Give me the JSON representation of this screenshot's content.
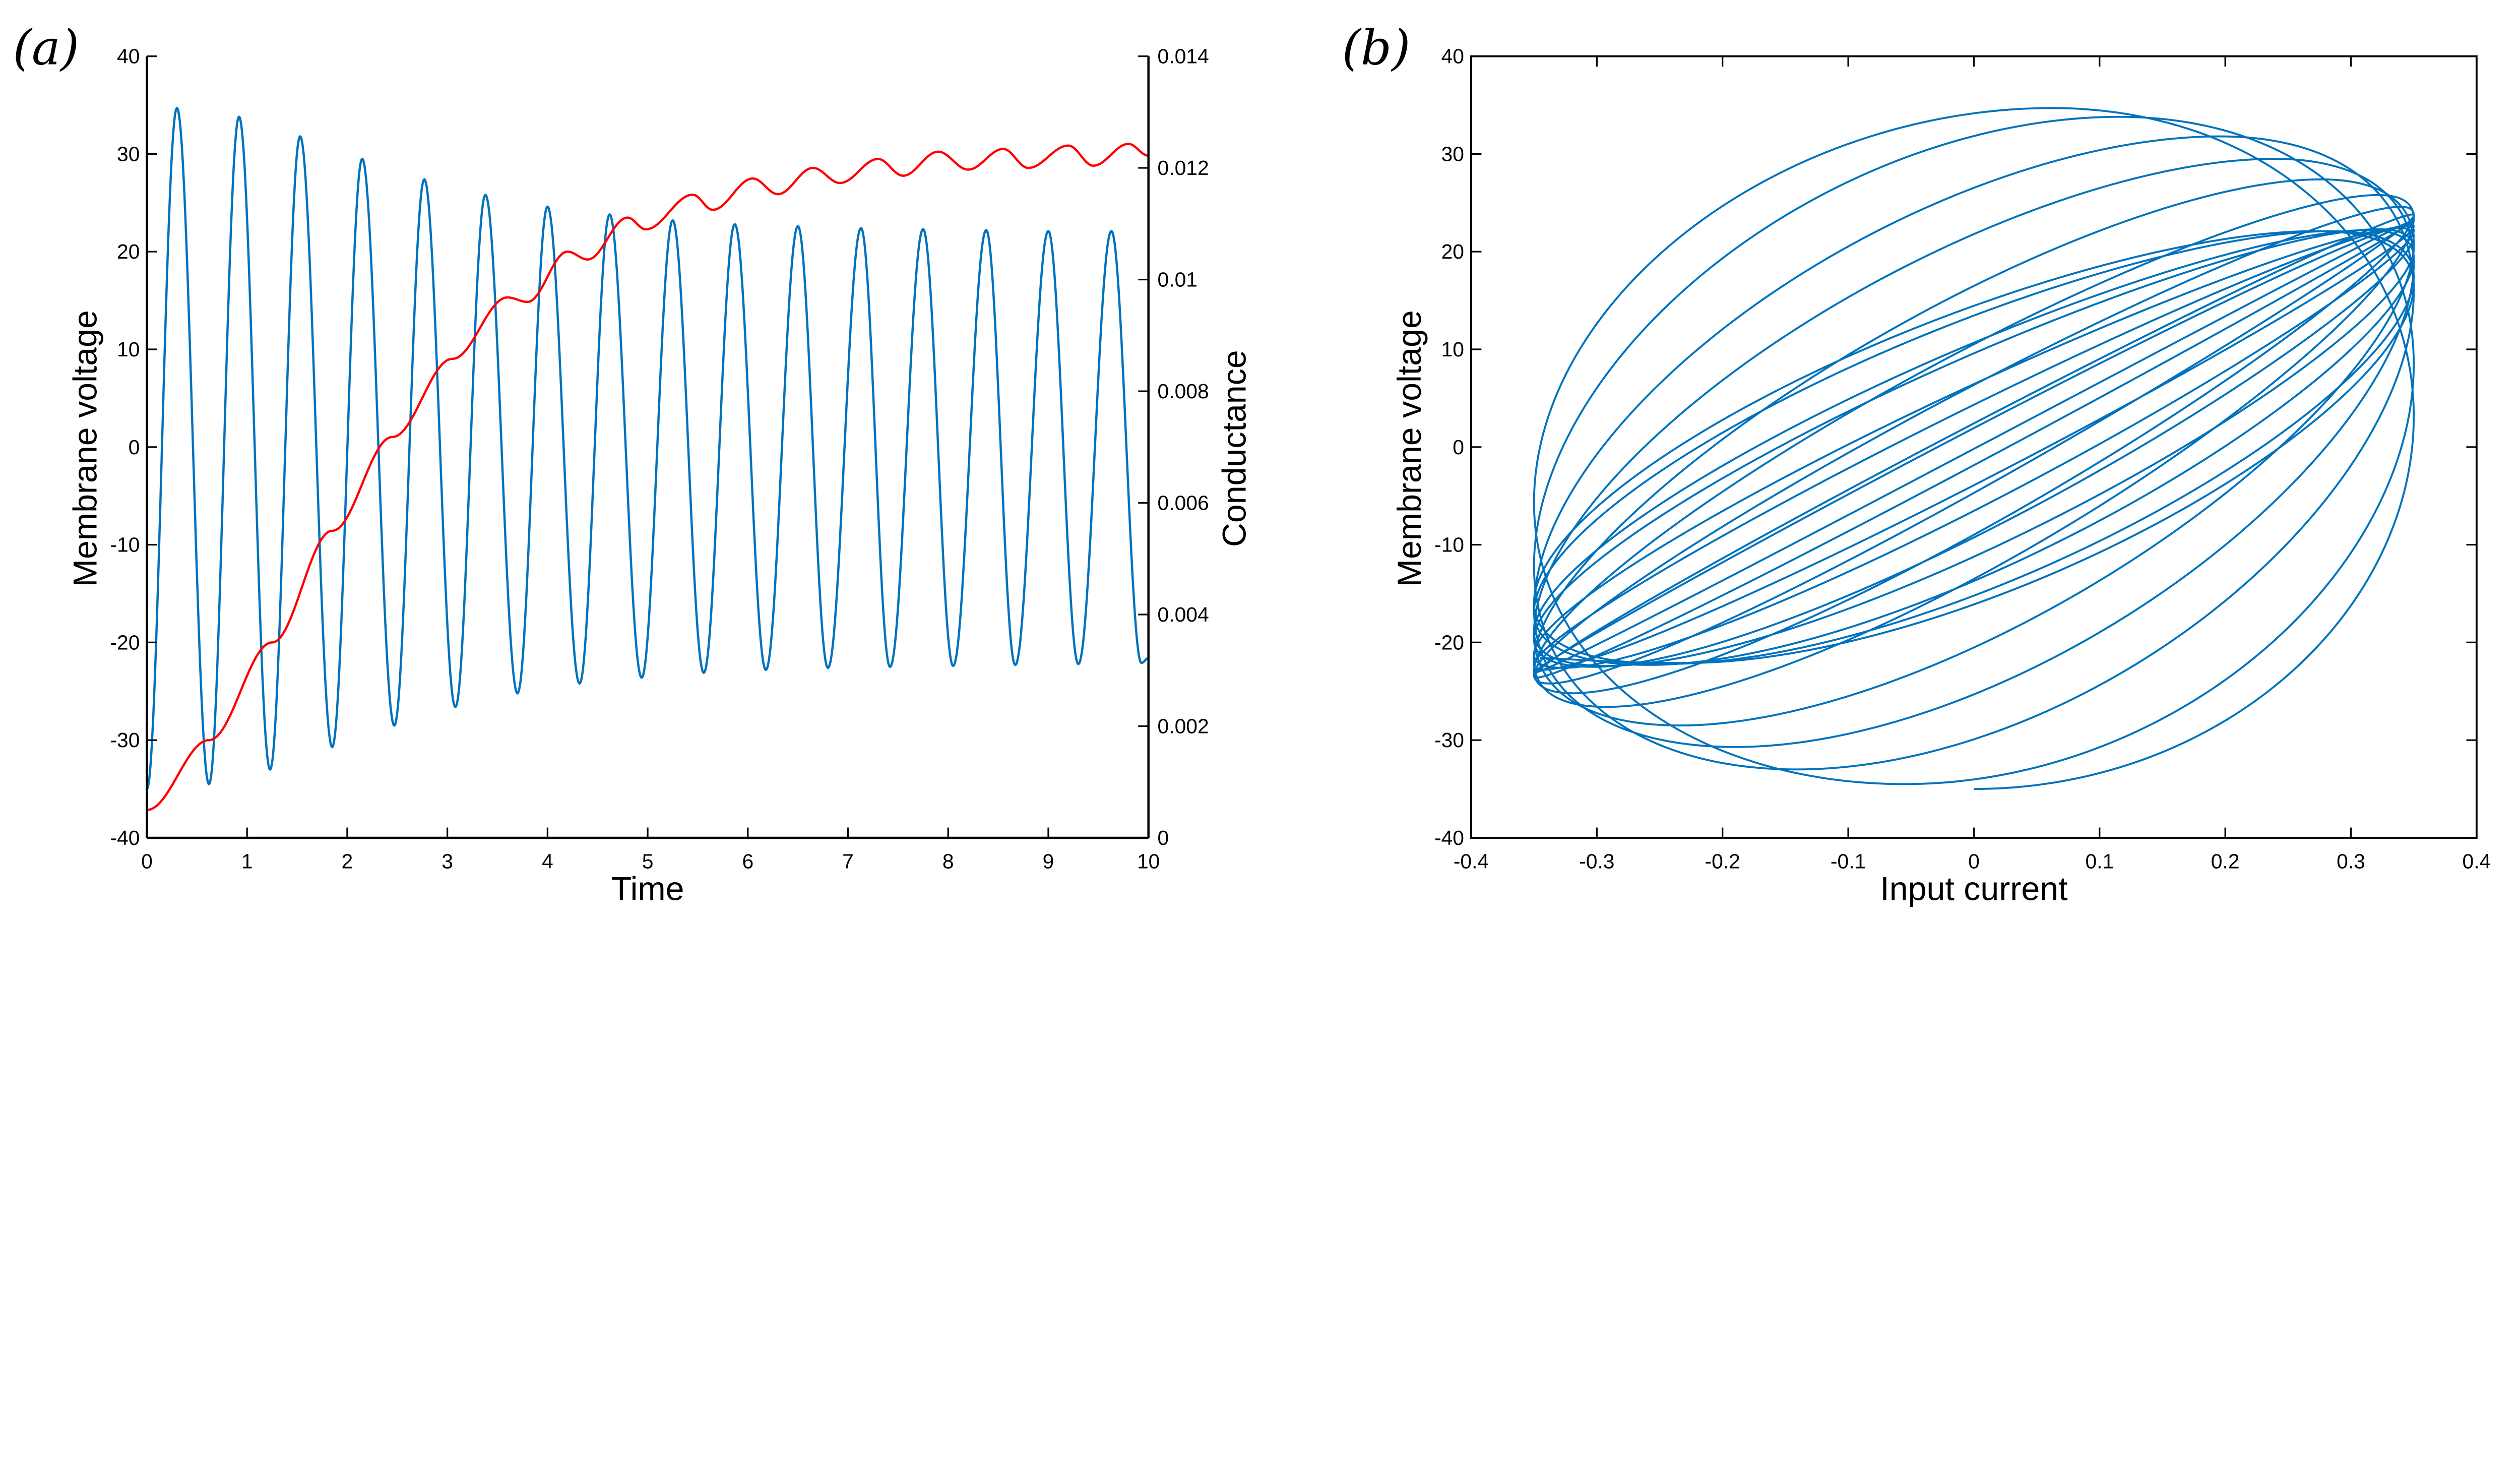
{
  "chart_data": [
    {
      "panel_label": "(a)",
      "type": "line",
      "xlabel": "Time",
      "ylabel_left": "Membrane voltage",
      "ylabel_right": "Conductance",
      "xlim": [
        0,
        10
      ],
      "ylim_left": [
        -40,
        40
      ],
      "ylim_right": [
        0,
        0.014
      ],
      "xticks": [
        "0",
        "1",
        "2",
        "3",
        "4",
        "5",
        "6",
        "7",
        "8",
        "9",
        "10"
      ],
      "yticks_left": [
        "-40",
        "-30",
        "-20",
        "-10",
        "0",
        "10",
        "20",
        "30",
        "40"
      ],
      "yticks_right": [
        "0",
        "0.002",
        "0.004",
        "0.006",
        "0.008",
        "0.01",
        "0.012",
        "0.014"
      ],
      "grid": false,
      "series": [
        {
          "axis": "left",
          "color": "#0072BD",
          "extrema": [
            [
              0,
              -35
            ],
            [
              0.3,
              34.7
            ],
            [
              0.62,
              -34.5
            ],
            [
              0.92,
              33.8
            ],
            [
              1.23,
              -33
            ],
            [
              1.53,
              31.8
            ],
            [
              1.85,
              -30.7
            ],
            [
              2.15,
              29.5
            ],
            [
              2.47,
              -28.5
            ],
            [
              2.77,
              27.4
            ],
            [
              3.08,
              -26.6
            ],
            [
              3.38,
              25.8
            ],
            [
              3.7,
              -25.2
            ],
            [
              4.0,
              24.6
            ],
            [
              4.32,
              -24.2
            ],
            [
              4.62,
              23.8
            ],
            [
              4.94,
              -23.6
            ],
            [
              5.25,
              23.2
            ],
            [
              5.56,
              -23.1
            ],
            [
              5.87,
              22.8
            ],
            [
              6.18,
              -22.8
            ],
            [
              6.5,
              22.6
            ],
            [
              6.8,
              -22.6
            ],
            [
              7.13,
              22.4
            ],
            [
              7.42,
              -22.5
            ],
            [
              7.75,
              22.3
            ],
            [
              8.05,
              -22.4
            ],
            [
              8.38,
              22.2
            ],
            [
              8.67,
              -22.3
            ],
            [
              9.0,
              22.1
            ],
            [
              9.3,
              -22.2
            ],
            [
              9.63,
              22.1
            ],
            [
              9.93,
              -22.1
            ],
            [
              10,
              -21.6
            ]
          ]
        },
        {
          "axis": "right",
          "color": "#FF0000",
          "extrema": [
            [
              0,
              0.0005
            ],
            [
              0.62,
              0.00175
            ],
            [
              1.25,
              0.0035
            ],
            [
              1.85,
              0.0055
            ],
            [
              2.45,
              0.00718
            ],
            [
              3.05,
              0.00858
            ],
            [
              3.6,
              0.00968
            ],
            [
              3.8,
              0.0096
            ],
            [
              4.2,
              0.0105
            ],
            [
              4.4,
              0.01036
            ],
            [
              4.8,
              0.01111
            ],
            [
              4.98,
              0.0109
            ],
            [
              5.45,
              0.01152
            ],
            [
              5.65,
              0.01125
            ],
            [
              6.05,
              0.01181
            ],
            [
              6.3,
              0.01153
            ],
            [
              6.65,
              0.012
            ],
            [
              6.92,
              0.01173
            ],
            [
              7.3,
              0.01216
            ],
            [
              7.55,
              0.01186
            ],
            [
              7.9,
              0.01229
            ],
            [
              8.2,
              0.01197
            ],
            [
              8.55,
              0.01234
            ],
            [
              8.8,
              0.012
            ],
            [
              9.2,
              0.0124
            ],
            [
              9.45,
              0.01204
            ],
            [
              9.8,
              0.01243
            ],
            [
              10,
              0.01222
            ]
          ]
        }
      ]
    },
    {
      "panel_label": "(b)",
      "type": "line",
      "xlabel": "Input current",
      "ylabel": "Membrane voltage",
      "xlim": [
        -0.4,
        0.4
      ],
      "ylim": [
        -40,
        40
      ],
      "xticks": [
        "-0.4",
        "-0.3",
        "-0.2",
        "-0.1",
        "0",
        "0.1",
        "0.2",
        "0.3",
        "0.4"
      ],
      "yticks": [
        "-40",
        "-30",
        "-20",
        "-10",
        "0",
        "10",
        "20",
        "30",
        "40"
      ],
      "grid": false,
      "box": true,
      "input_current_amplitude": 0.35,
      "color": "#0072BD"
    }
  ]
}
